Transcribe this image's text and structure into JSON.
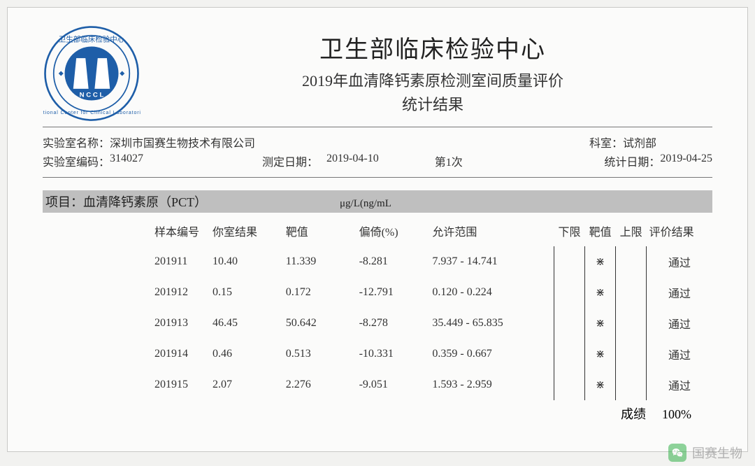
{
  "org_short": "NCCL",
  "header": {
    "title_main": "卫生部临床检验中心",
    "title_sub1": "2019年血清降钙素原检测室间质量评价",
    "title_sub2": "统计结果"
  },
  "info": {
    "lab_name_label": "实验室名称：",
    "lab_name": "深圳市国赛生物技术有限公司",
    "dept_label": "科室：",
    "dept": "试剂部",
    "lab_code_label": "实验室编码：",
    "lab_code": "314027",
    "test_date_label": "测定日期：",
    "test_date": "2019-04-10",
    "session_label": "第1次",
    "stat_date_label": "统计日期：",
    "stat_date": "2019-04-25"
  },
  "project": {
    "label": "项目：",
    "name": "血清降钙素原（PCT）",
    "unit": "μg/L(ng/mL"
  },
  "columns": {
    "sample": "样本编号",
    "result": "你室结果",
    "target": "靶值",
    "bias": "偏倚(%)",
    "range": "允许范围",
    "low": "下限",
    "mid": "靶值",
    "high": "上限",
    "eval": "评价结果"
  },
  "mark_symbol": "⋇",
  "rows": [
    {
      "sample": "201911",
      "result": "10.40",
      "target": "11.339",
      "bias": "-8.281",
      "range": "7.937 - 14.741",
      "eval": "通过"
    },
    {
      "sample": "201912",
      "result": "0.15",
      "target": "0.172",
      "bias": "-12.791",
      "range": "0.120 - 0.224",
      "eval": "通过"
    },
    {
      "sample": "201913",
      "result": "46.45",
      "target": "50.642",
      "bias": "-8.278",
      "range": "35.449 - 65.835",
      "eval": "通过"
    },
    {
      "sample": "201914",
      "result": "0.46",
      "target": "0.513",
      "bias": "-10.331",
      "range": "0.359 - 0.667",
      "eval": "通过"
    },
    {
      "sample": "201915",
      "result": "2.07",
      "target": "2.276",
      "bias": "-9.051",
      "range": "1.593 - 2.959",
      "eval": "通过"
    }
  ],
  "score": {
    "label": "成绩",
    "value": "100%"
  },
  "watermark": {
    "text": "国赛生物"
  },
  "colors": {
    "logo_blue": "#1e5ea8",
    "logo_blue_light": "#3a7fd0",
    "project_bar_bg": "#bfbfbf",
    "page_bg": "#fbfbfa",
    "border": "#777777"
  }
}
